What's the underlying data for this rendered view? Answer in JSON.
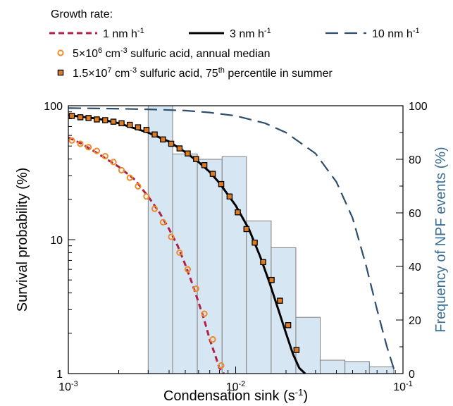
{
  "chart_data": {
    "type": "line",
    "x_scale": "log",
    "y_scale": "log",
    "xlim": [
      0.001,
      0.1
    ],
    "ylim": [
      1,
      100
    ],
    "y2lim": [
      0,
      100
    ],
    "xlabel_base": "Condensation sink (s",
    "xlabel_sup": "-1",
    "xlabel_end": ")",
    "ylabel": "Survival probability (%)",
    "y2label": "Frequency of NPF events (%)",
    "x_ticks": [
      {
        "value": 0.001,
        "base": "10",
        "exp": "-3"
      },
      {
        "value": 0.01,
        "base": "10",
        "exp": "-2"
      },
      {
        "value": 0.1,
        "base": "10",
        "exp": "-1"
      }
    ],
    "y_ticks": [
      {
        "value": 1,
        "label": "1"
      },
      {
        "value": 10,
        "label": "10"
      },
      {
        "value": 100,
        "label": "100"
      }
    ],
    "y2_ticks": [
      {
        "value": 0,
        "label": "0"
      },
      {
        "value": 20,
        "label": "20"
      },
      {
        "value": 40,
        "label": "40"
      },
      {
        "value": 60,
        "label": "60"
      },
      {
        "value": 80,
        "label": "80"
      },
      {
        "value": 100,
        "label": "100"
      }
    ],
    "legend": {
      "title": "Growth rate:",
      "placement": "top"
    },
    "series": [
      {
        "name": "1 nm h",
        "name_sup": "-1",
        "kind": "line",
        "style": "short-dash",
        "color": "#b01f45",
        "x": [
          0.001,
          0.0012,
          0.0015,
          0.002,
          0.0025,
          0.003,
          0.0035,
          0.004,
          0.0045,
          0.005,
          0.0055,
          0.006,
          0.0065,
          0.007,
          0.0075,
          0.008,
          0.0085
        ],
        "y": [
          58,
          52,
          44,
          35,
          28,
          21,
          16,
          12,
          9,
          6.5,
          4.7,
          3.4,
          2.5,
          1.8,
          1.4,
          1.1,
          1.0
        ]
      },
      {
        "name": "3 nm h",
        "name_sup": "-1",
        "kind": "line",
        "style": "solid",
        "color": "#000000",
        "x": [
          0.001,
          0.0015,
          0.002,
          0.003,
          0.004,
          0.005,
          0.006,
          0.007,
          0.008,
          0.01,
          0.012,
          0.014,
          0.016,
          0.018,
          0.02,
          0.022,
          0.024,
          0.026
        ],
        "y": [
          85,
          80,
          74,
          63,
          54,
          45,
          38,
          32,
          26.5,
          18,
          12,
          7.5,
          4.7,
          3.0,
          2.0,
          1.4,
          1.1,
          1.0
        ]
      },
      {
        "name": "10 nm h",
        "name_sup": "-1",
        "kind": "line",
        "style": "long-dash",
        "color": "#2d4d6e",
        "x": [
          0.001,
          0.002,
          0.003,
          0.005,
          0.007,
          0.01,
          0.015,
          0.02,
          0.03,
          0.04,
          0.05,
          0.06,
          0.07,
          0.08,
          0.09
        ],
        "y": [
          96,
          95,
          94,
          92,
          89,
          84,
          74,
          63,
          44,
          27,
          14.5,
          6.5,
          3.0,
          1.6,
          1.0
        ]
      },
      {
        "name_pre": "5×10",
        "name_sup": "6",
        "name_post": " cm",
        "name_sup2": "-3",
        "name_end": " sulfuric acid, annual median",
        "kind": "scatter",
        "marker": "open-circle",
        "color": "#ef8a2a",
        "x": [
          0.00105,
          0.00118,
          0.00132,
          0.00148,
          0.00166,
          0.00186,
          0.00208,
          0.00233,
          0.00261,
          0.00293,
          0.00328,
          0.00368,
          0.00412,
          0.00462,
          0.00517,
          0.0058,
          0.0065,
          0.0073,
          0.0082
        ],
        "y": [
          55,
          52,
          49,
          46,
          42,
          38,
          33,
          29,
          25,
          21,
          17,
          13.5,
          10.5,
          8,
          6,
          4.3,
          2.8,
          1.8,
          1.15
        ]
      },
      {
        "name_pre": "1.5×10",
        "name_sup": "7",
        "name_post": " cm",
        "name_sup2": "-3",
        "name_end": " sulfuric acid, 75",
        "name_sup3": "th",
        "name_end2": " percentile in summer",
        "kind": "scatter",
        "marker": "filled-square",
        "color": "#e07b1f",
        "x": [
          0.00105,
          0.00118,
          0.00132,
          0.00148,
          0.00166,
          0.00186,
          0.00208,
          0.00233,
          0.00261,
          0.00293,
          0.00328,
          0.00368,
          0.00412,
          0.00462,
          0.00517,
          0.0058,
          0.0065,
          0.0073,
          0.0082,
          0.0092,
          0.0103,
          0.0116,
          0.013,
          0.0146,
          0.0164,
          0.0184,
          0.0206,
          0.0231
        ],
        "y": [
          84,
          82,
          81,
          79,
          78,
          76,
          74,
          72,
          69,
          66,
          61,
          56,
          52,
          48,
          44,
          40,
          36,
          31,
          26,
          21,
          16,
          12,
          9.5,
          6.8,
          5.0,
          3.5,
          2.3,
          1.5
        ]
      }
    ],
    "bars": {
      "axis": "right",
      "color": "#d6e7f3",
      "edges": [
        0.003,
        0.0042,
        0.0059,
        0.0083,
        0.0116,
        0.0163,
        0.0229,
        0.032,
        0.045,
        0.063,
        0.088
      ],
      "values": [
        100,
        82,
        80,
        81,
        57,
        47,
        21,
        5,
        4.5,
        2.5
      ]
    },
    "reference_line": {
      "y": 100,
      "style": "dash-dot",
      "color": "#777777"
    }
  }
}
